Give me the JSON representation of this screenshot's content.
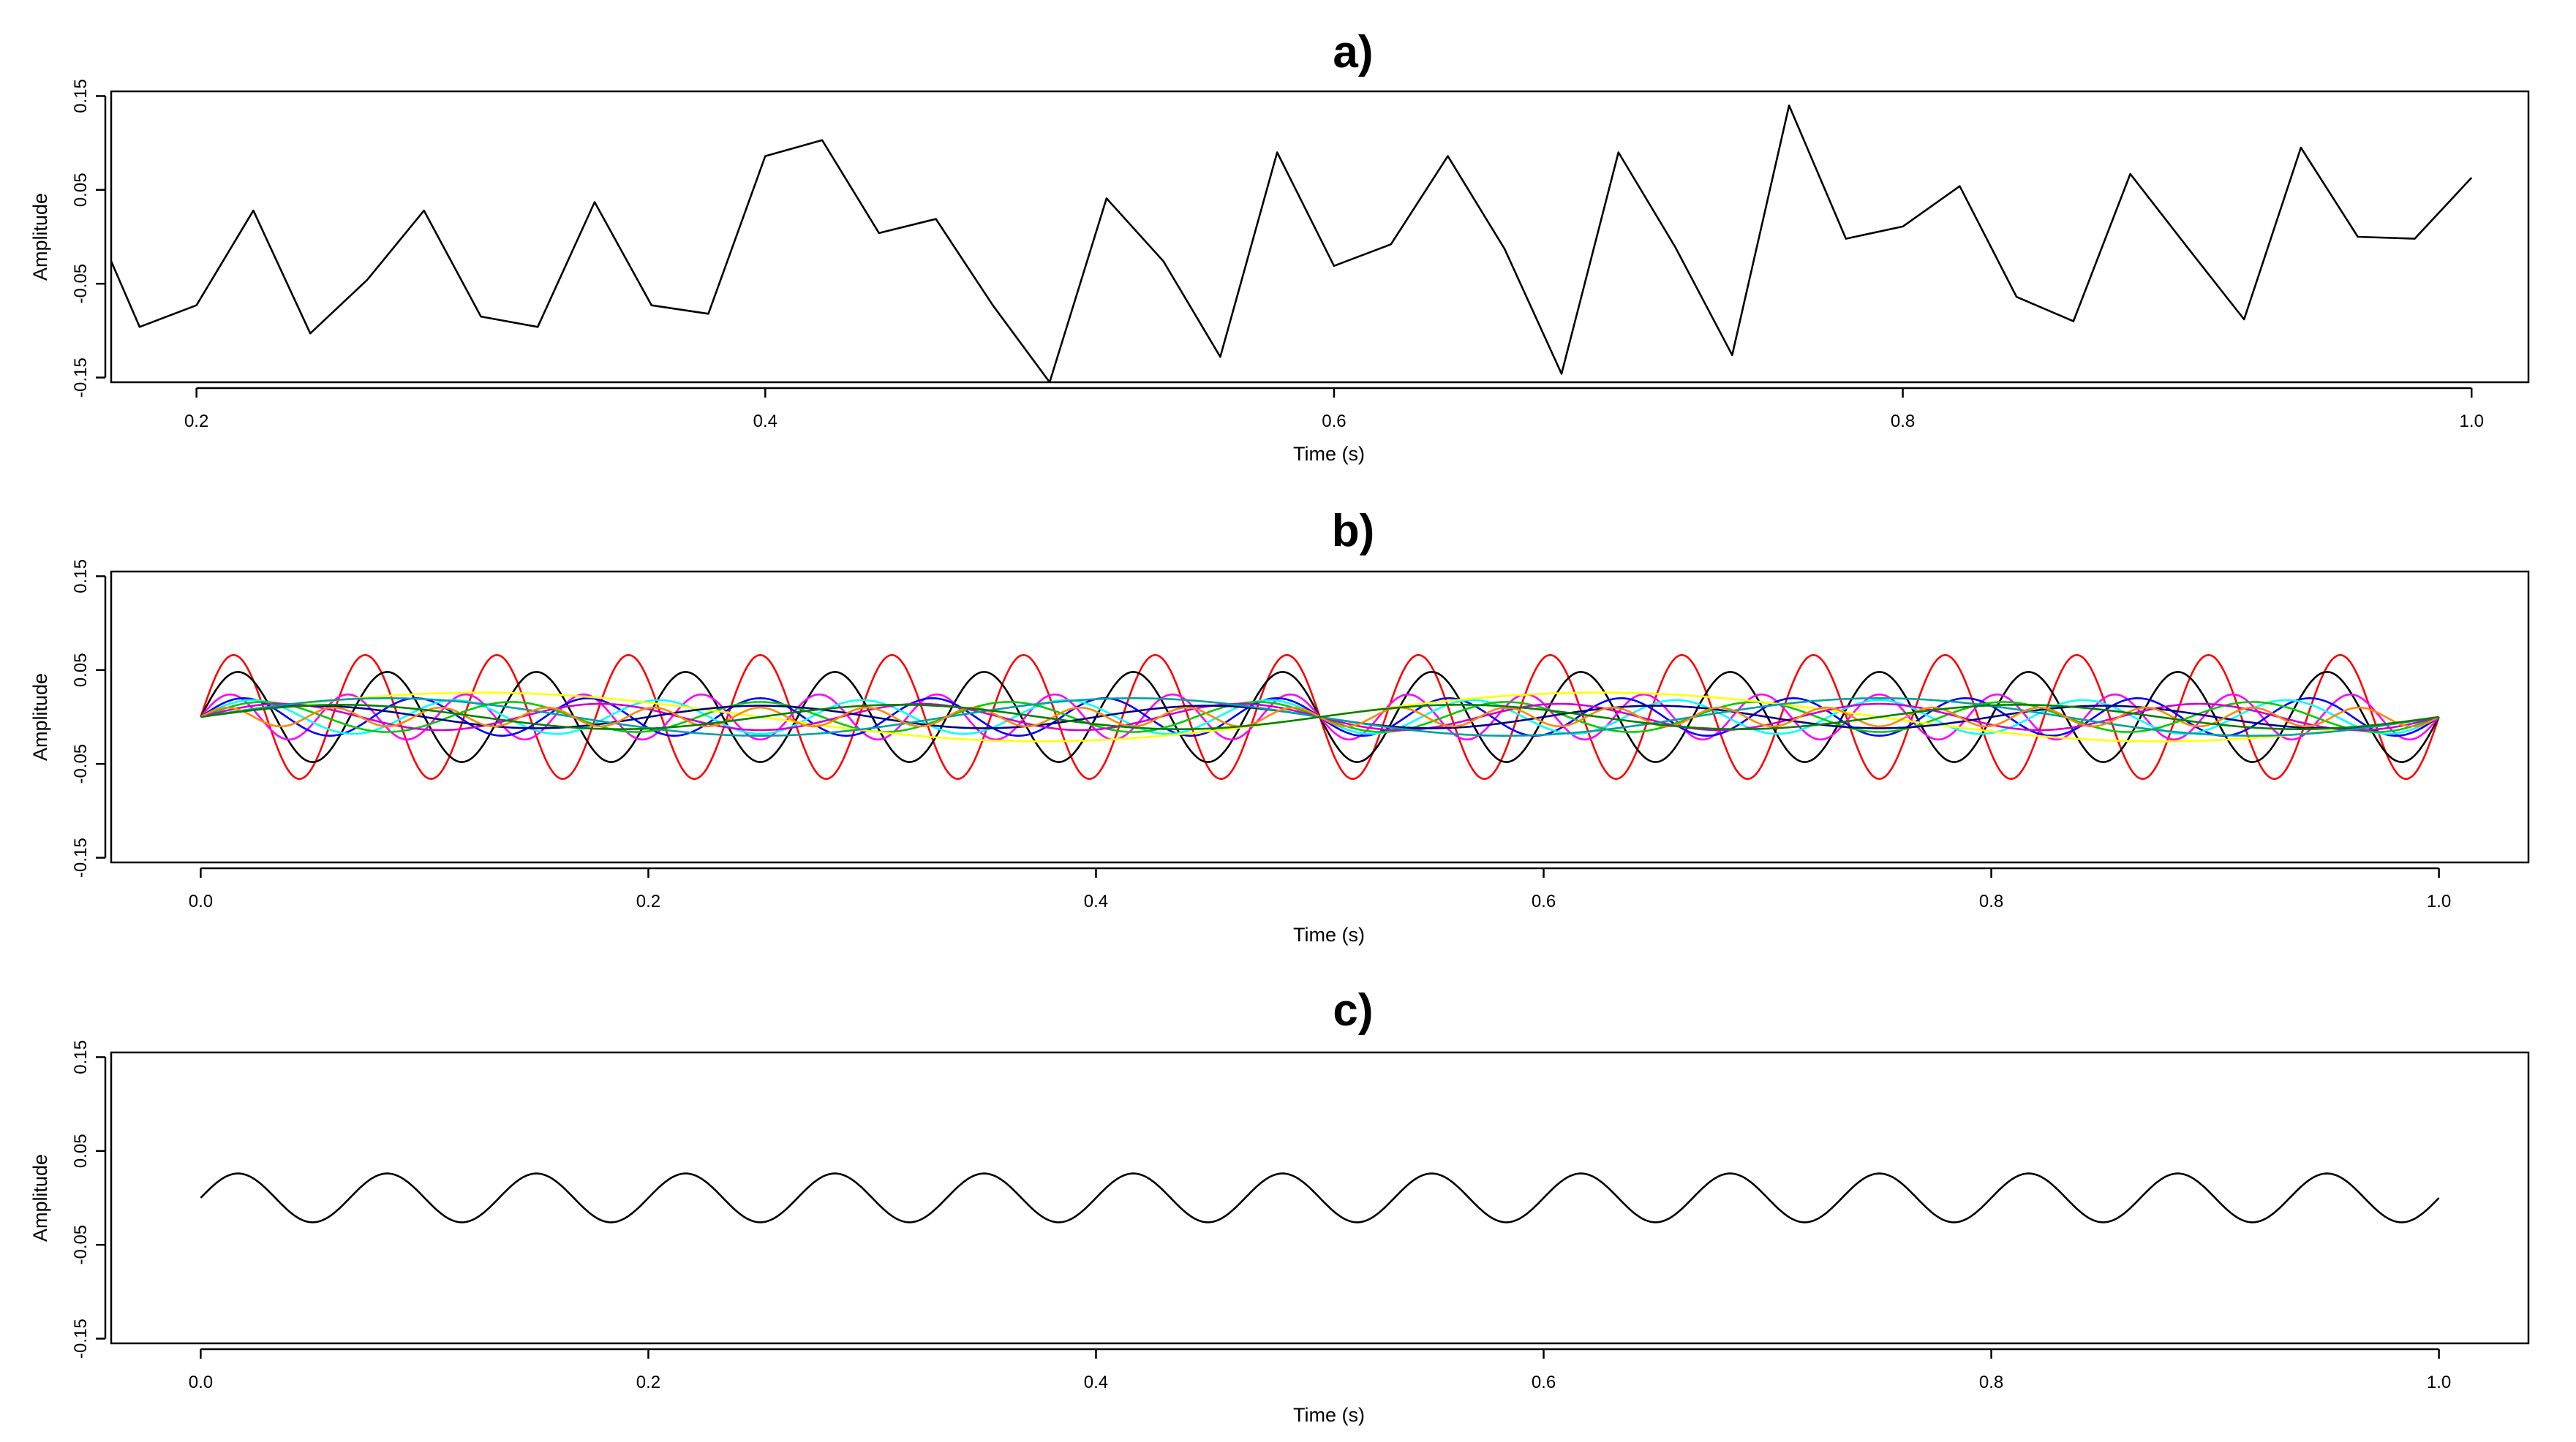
{
  "chart_data": [
    {
      "type": "line",
      "panel_title": "a)",
      "xlabel": "Time (s)",
      "ylabel": "Amplitude",
      "xlim": [
        0.17,
        1.02
      ],
      "ylim": [
        -0.155,
        0.155
      ],
      "xticks": [
        0.2,
        0.4,
        0.6,
        0.8,
        1.0
      ],
      "xtick_labels": [
        "0.2",
        "0.4",
        "0.6",
        "0.8",
        "1.0"
      ],
      "yticks": [
        0.15,
        0.05,
        -0.05,
        -0.15
      ],
      "ytick_labels": [
        "0.15",
        "0.05",
        "-0.05",
        "-0.15"
      ],
      "grid": false,
      "series": [
        {
          "color": "#000000",
          "x": [
            0.17,
            0.18,
            0.2,
            0.22,
            0.24,
            0.26,
            0.28,
            0.3,
            0.32,
            0.34,
            0.36,
            0.38,
            0.4,
            0.42,
            0.44,
            0.46,
            0.48,
            0.5,
            0.52,
            0.54,
            0.56,
            0.58,
            0.6,
            0.62,
            0.64,
            0.66,
            0.68,
            0.7,
            0.72,
            0.74,
            0.76,
            0.78,
            0.8,
            0.82,
            0.84,
            0.86,
            0.88,
            0.9,
            0.92,
            0.94,
            0.96,
            0.98,
            1.0
          ],
          "y": [
            -0.026,
            -0.096,
            -0.073,
            0.028,
            -0.103,
            -0.046,
            0.028,
            -0.085,
            -0.096,
            0.037,
            -0.073,
            -0.082,
            0.086,
            0.103,
            0.004,
            0.019,
            -0.073,
            -0.155,
            0.041,
            -0.026,
            -0.128,
            0.09,
            -0.031,
            -0.008,
            0.086,
            -0.013,
            -0.146,
            0.09,
            -0.011,
            -0.126,
            0.14,
            -0.002,
            0.011,
            0.054,
            -0.064,
            -0.09,
            0.067,
            -0.011,
            -0.088,
            0.095,
            0.0,
            -0.002,
            0.063
          ]
        }
      ]
    },
    {
      "type": "line",
      "panel_title": "b)",
      "xlabel": "Time (s)",
      "ylabel": "Amplitude",
      "xlim": [
        -0.04,
        1.04
      ],
      "ylim": [
        -0.155,
        0.155
      ],
      "xticks": [
        0.0,
        0.2,
        0.4,
        0.6,
        0.8,
        1.0
      ],
      "xtick_labels": [
        "0.0",
        "0.2",
        "0.4",
        "0.6",
        "0.8",
        "1.0"
      ],
      "yticks": [
        0.15,
        0.05,
        -0.05,
        -0.15
      ],
      "ytick_labels": [
        "0.15",
        "0.05",
        "-0.05",
        "-0.15"
      ],
      "grid": false,
      "series": [
        {
          "color": "#ff0000",
          "amplitude": 0.066,
          "frequency": 17,
          "phase": 0
        },
        {
          "color": "#000000",
          "amplitude": 0.048,
          "frequency": 15,
          "phase": 0
        },
        {
          "color": "#ff00ff",
          "amplitude": 0.024,
          "frequency": 19,
          "phase": 0
        },
        {
          "color": "#0000ff",
          "amplitude": 0.02,
          "frequency": 13,
          "phase": 0
        },
        {
          "color": "#00ffff",
          "amplitude": 0.018,
          "frequency": 11,
          "phase": 0
        },
        {
          "color": "#00cc00",
          "amplitude": 0.016,
          "frequency": 9,
          "phase": 0
        },
        {
          "color": "#ffff00",
          "amplitude": 0.026,
          "frequency": 2,
          "phase": 0
        },
        {
          "color": "#cc00cc",
          "amplitude": 0.014,
          "frequency": 7,
          "phase": 0
        },
        {
          "color": "#000080",
          "amplitude": 0.012,
          "frequency": 5,
          "phase": 0
        },
        {
          "color": "#00a0a0",
          "amplitude": 0.02,
          "frequency": 3,
          "phase": 0
        },
        {
          "color": "#ff8800",
          "amplitude": 0.01,
          "frequency": 21,
          "phase": 0
        },
        {
          "color": "#008000",
          "amplitude": 0.013,
          "frequency": 4,
          "phase": 0
        }
      ]
    },
    {
      "type": "line",
      "panel_title": "c)",
      "xlabel": "Time (s)",
      "ylabel": "Amplitude",
      "xlim": [
        -0.04,
        1.04
      ],
      "ylim": [
        -0.155,
        0.155
      ],
      "xticks": [
        0.0,
        0.2,
        0.4,
        0.6,
        0.8,
        1.0
      ],
      "xtick_labels": [
        "0.0",
        "0.2",
        "0.4",
        "0.6",
        "0.8",
        "1.0"
      ],
      "yticks": [
        0.15,
        0.05,
        -0.05,
        -0.15
      ],
      "ytick_labels": [
        "0.15",
        "0.05",
        "-0.05",
        "-0.15"
      ],
      "grid": false,
      "series": [
        {
          "color": "#000000",
          "amplitude": 0.026,
          "frequency": 15,
          "phase": 0
        }
      ]
    }
  ]
}
